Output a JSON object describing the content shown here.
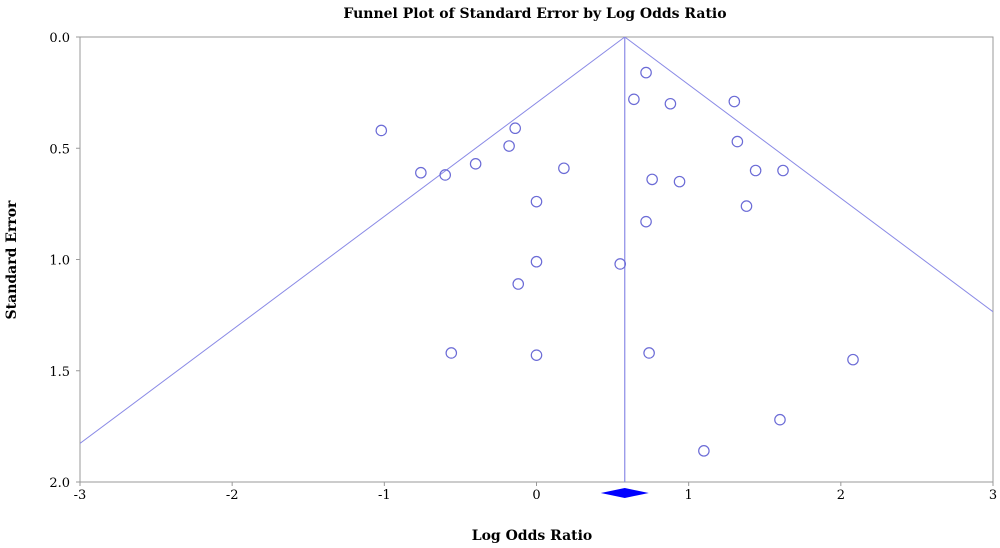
{
  "chart_data": {
    "type": "scatter",
    "title": "Funnel Plot of Standard Error by Log Odds Ratio",
    "xlabel": "Log Odds Ratio",
    "ylabel": "Standard Error",
    "xlim": [
      -3,
      3
    ],
    "ylim": [
      0,
      2
    ],
    "y_inverted": true,
    "x_ticks": [
      "-3",
      "-2",
      "-1",
      "0",
      "1",
      "2",
      "3"
    ],
    "y_ticks": [
      "0.0",
      "0.5",
      "1.0",
      "1.5",
      "2.0"
    ],
    "grid": false,
    "legend": "none",
    "pooled_estimate": 0.58,
    "funnel_slope": 1.96,
    "points": [
      {
        "x": 0.72,
        "y": 0.16
      },
      {
        "x": 0.64,
        "y": 0.28
      },
      {
        "x": 0.88,
        "y": 0.3
      },
      {
        "x": 1.3,
        "y": 0.29
      },
      {
        "x": -1.02,
        "y": 0.42
      },
      {
        "x": -0.14,
        "y": 0.41
      },
      {
        "x": -0.18,
        "y": 0.49
      },
      {
        "x": 1.32,
        "y": 0.47
      },
      {
        "x": -0.4,
        "y": 0.57
      },
      {
        "x": -0.76,
        "y": 0.61
      },
      {
        "x": -0.6,
        "y": 0.62
      },
      {
        "x": 0.18,
        "y": 0.59
      },
      {
        "x": 0.76,
        "y": 0.64
      },
      {
        "x": 0.94,
        "y": 0.65
      },
      {
        "x": 1.44,
        "y": 0.6
      },
      {
        "x": 1.62,
        "y": 0.6
      },
      {
        "x": 0.0,
        "y": 0.74
      },
      {
        "x": 1.38,
        "y": 0.76
      },
      {
        "x": 0.72,
        "y": 0.83
      },
      {
        "x": 0.0,
        "y": 1.01
      },
      {
        "x": 0.55,
        "y": 1.02
      },
      {
        "x": -0.12,
        "y": 1.11
      },
      {
        "x": -0.56,
        "y": 1.42
      },
      {
        "x": 0.0,
        "y": 1.43
      },
      {
        "x": 0.74,
        "y": 1.42
      },
      {
        "x": 2.08,
        "y": 1.45
      },
      {
        "x": 1.6,
        "y": 1.72
      },
      {
        "x": 1.1,
        "y": 1.86
      }
    ],
    "colors": {
      "funnel": "#8a8ae6",
      "marker": "#6b6bd6",
      "diamond": "#0000ff",
      "frame": "#999999"
    }
  }
}
